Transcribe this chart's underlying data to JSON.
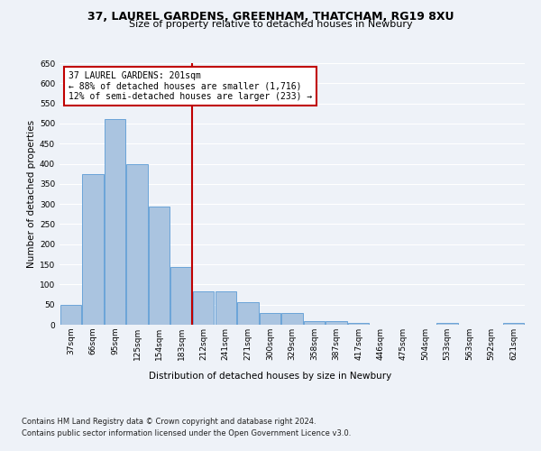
{
  "title1": "37, LAUREL GARDENS, GREENHAM, THATCHAM, RG19 8XU",
  "title2": "Size of property relative to detached houses in Newbury",
  "xlabel": "Distribution of detached houses by size in Newbury",
  "ylabel": "Number of detached properties",
  "categories": [
    "37sqm",
    "66sqm",
    "95sqm",
    "125sqm",
    "154sqm",
    "183sqm",
    "212sqm",
    "241sqm",
    "271sqm",
    "300sqm",
    "329sqm",
    "358sqm",
    "387sqm",
    "417sqm",
    "446sqm",
    "475sqm",
    "504sqm",
    "533sqm",
    "563sqm",
    "592sqm",
    "621sqm"
  ],
  "values": [
    50,
    375,
    510,
    400,
    293,
    143,
    82,
    82,
    57,
    30,
    30,
    10,
    10,
    5,
    0,
    0,
    0,
    5,
    0,
    0,
    5
  ],
  "bar_color": "#aac4e0",
  "bar_edge_color": "#5b9bd5",
  "highlight_color": "#c00000",
  "vline_pos": 5.5,
  "ylim": [
    0,
    650
  ],
  "yticks": [
    0,
    50,
    100,
    150,
    200,
    250,
    300,
    350,
    400,
    450,
    500,
    550,
    600,
    650
  ],
  "annotation_title": "37 LAUREL GARDENS: 201sqm",
  "annotation_line1": "← 88% of detached houses are smaller (1,716)",
  "annotation_line2": "12% of semi-detached houses are larger (233) →",
  "footnote1": "Contains HM Land Registry data © Crown copyright and database right 2024.",
  "footnote2": "Contains public sector information licensed under the Open Government Licence v3.0.",
  "bg_color": "#eef2f8",
  "plot_bg_color": "#eef2f8",
  "grid_color": "#ffffff",
  "title_fontsize": 9,
  "subtitle_fontsize": 8,
  "axis_label_fontsize": 7.5,
  "tick_fontsize": 6.5,
  "annotation_fontsize": 7,
  "footnote_fontsize": 6
}
